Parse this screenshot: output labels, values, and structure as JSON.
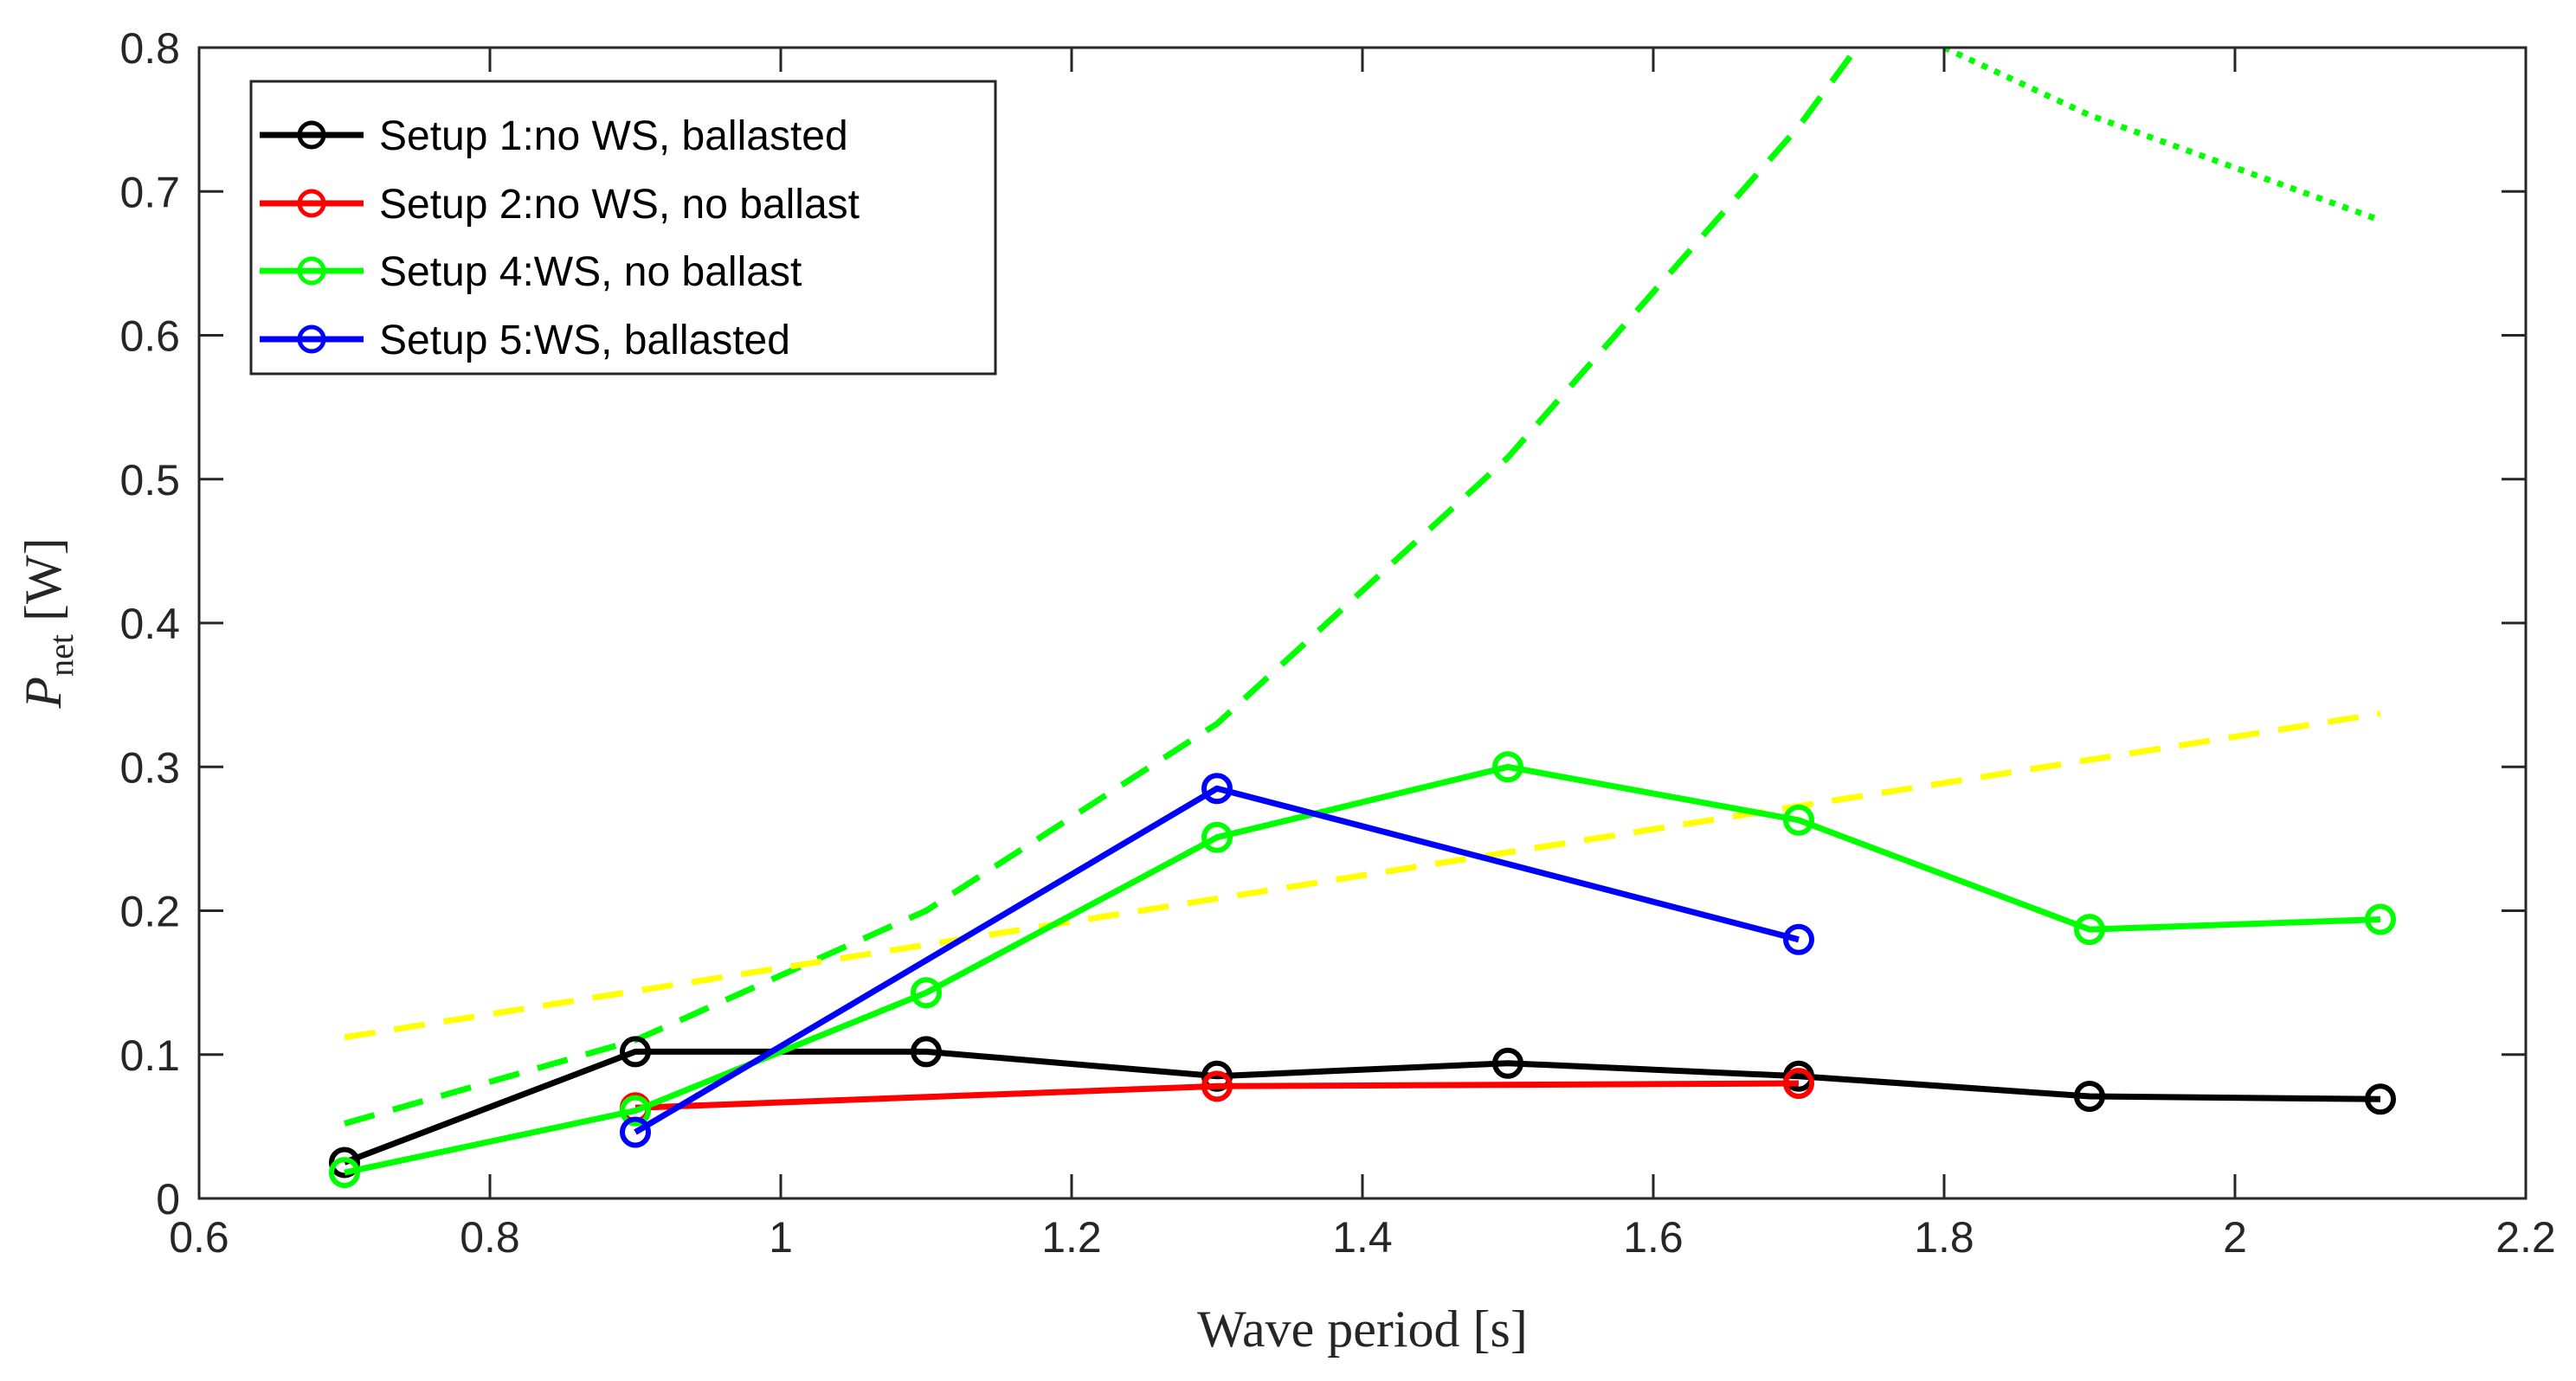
{
  "chart_data": {
    "type": "line",
    "title": "",
    "xlabel": "Wave period [s]",
    "ylabel_main": "P",
    "ylabel_sub": "net",
    "ylabel_unit": "[W]",
    "xlim": [
      0.6,
      2.2
    ],
    "ylim": [
      0,
      0.8
    ],
    "xticks": [
      0.6,
      0.8,
      1,
      1.2,
      1.4,
      1.6,
      1.8,
      2,
      2.2
    ],
    "xtick_labels": [
      "0.6",
      "0.8",
      "1",
      "1.2",
      "1.4",
      "1.6",
      "1.8",
      "2",
      "2.2"
    ],
    "yticks": [
      0,
      0.1,
      0.2,
      0.3,
      0.4,
      0.5,
      0.6,
      0.7,
      0.8
    ],
    "ytick_labels": [
      "0",
      "0.1",
      "0.2",
      "0.3",
      "0.4",
      "0.5",
      "0.6",
      "0.7",
      "0.8"
    ],
    "grid": false,
    "legend_position": "top-left",
    "series": [
      {
        "name": "Setup 1:no WS, ballasted",
        "color": "#000000",
        "style": "solid",
        "markers": true,
        "in_legend": true,
        "x": [
          0.7,
          0.9,
          1.1,
          1.3,
          1.5,
          1.7,
          1.9,
          2.1
        ],
        "y": [
          0.025,
          0.102,
          0.102,
          0.085,
          0.094,
          0.085,
          0.071,
          0.069
        ]
      },
      {
        "name": "Setup 2:no WS, no ballast",
        "color": "#ff0000",
        "style": "solid",
        "markers": true,
        "in_legend": true,
        "x": [
          0.9,
          1.3,
          1.7
        ],
        "y": [
          0.063,
          0.078,
          0.08
        ]
      },
      {
        "name": "Setup 4:WS, no ballast",
        "color": "#00ff00",
        "style": "solid",
        "markers": true,
        "in_legend": true,
        "x": [
          0.7,
          0.9,
          1.1,
          1.3,
          1.5,
          1.7,
          1.9,
          2.1
        ],
        "y": [
          0.018,
          0.061,
          0.143,
          0.251,
          0.3,
          0.263,
          0.187,
          0.194
        ]
      },
      {
        "name": "Setup 5:WS, ballasted",
        "color": "#0000ff",
        "style": "solid",
        "markers": true,
        "in_legend": true,
        "x": [
          0.9,
          1.3,
          1.7
        ],
        "y": [
          0.046,
          0.285,
          0.18
        ]
      },
      {
        "name": "green dashed curve",
        "color": "#00ff00",
        "style": "dashed",
        "markers": false,
        "in_legend": false,
        "x": [
          0.7,
          0.9,
          1.1,
          1.3,
          1.5,
          1.7,
          1.74
        ],
        "y": [
          0.052,
          0.11,
          0.2,
          0.33,
          0.515,
          0.745,
          0.8
        ]
      },
      {
        "name": "green dotted curve",
        "color": "#00ff00",
        "style": "dotted",
        "markers": false,
        "in_legend": false,
        "x": [
          1.8,
          1.9,
          2.1
        ],
        "y": [
          0.8,
          0.753,
          0.68
        ]
      },
      {
        "name": "yellow dashed line",
        "color": "#ffff00",
        "style": "dashed",
        "markers": false,
        "in_legend": false,
        "x": [
          0.7,
          2.1
        ],
        "y": [
          0.112,
          0.337
        ]
      }
    ]
  }
}
